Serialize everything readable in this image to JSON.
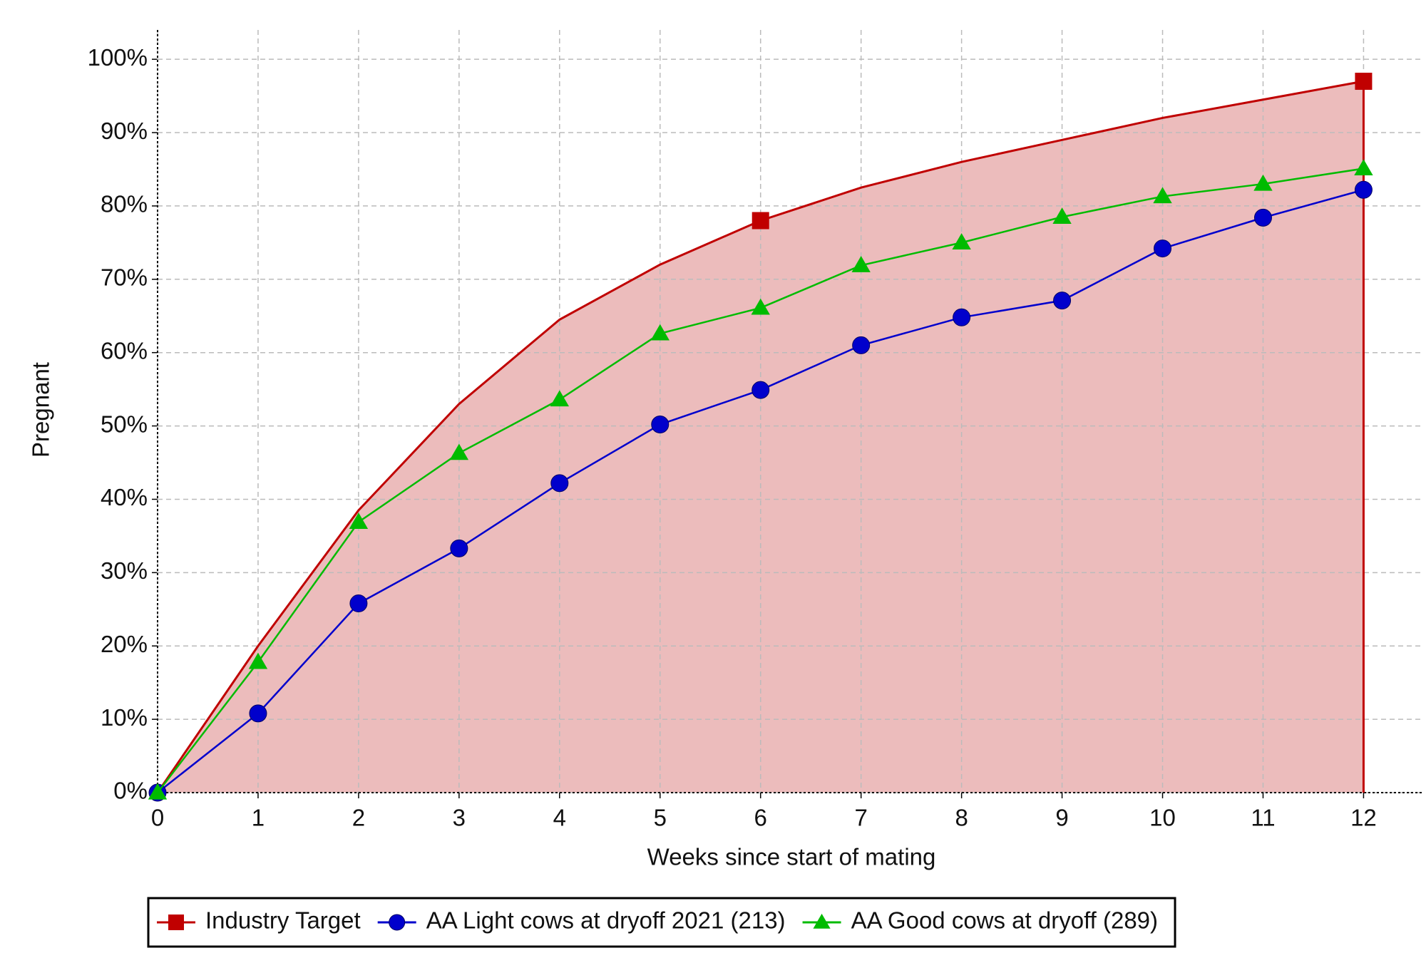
{
  "chart_data": {
    "type": "line",
    "x_label": "Weeks since start of mating",
    "y_label": "Pregnant",
    "x": [
      0,
      1,
      2,
      3,
      4,
      5,
      6,
      7,
      8,
      9,
      10,
      11,
      12
    ],
    "xlim": [
      0,
      12.6
    ],
    "xticks": [
      0,
      1,
      2,
      3,
      4,
      5,
      6,
      7,
      8,
      9,
      10,
      11,
      12
    ],
    "ylim": [
      0,
      104
    ],
    "yticks": [
      {
        "value": 0,
        "label": "0%"
      },
      {
        "value": 10,
        "label": "10%"
      },
      {
        "value": 20,
        "label": "20%"
      },
      {
        "value": 30,
        "label": "30%"
      },
      {
        "value": 40,
        "label": "40%"
      },
      {
        "value": 50,
        "label": "50%"
      },
      {
        "value": 60,
        "label": "60%"
      },
      {
        "value": 70,
        "label": "70%"
      },
      {
        "value": 80,
        "label": "80%"
      },
      {
        "value": 90,
        "label": "90%"
      },
      {
        "value": 100,
        "label": "100%"
      }
    ],
    "grid": true,
    "legend": "bottom",
    "series": [
      {
        "name": "Industry Target",
        "color": "#c00000",
        "fill": "#ecbcbc",
        "marker": "square",
        "markers_at": [
          6,
          12
        ],
        "values": [
          0,
          20,
          38.5,
          53,
          64.5,
          72,
          78,
          82.5,
          86,
          89,
          92,
          94.5,
          97
        ]
      },
      {
        "name": "AA Light cows at dryoff 2021 (213)",
        "color": "#0000cc",
        "marker": "circle",
        "values": [
          0,
          10.8,
          25.8,
          33.3,
          42.2,
          50.2,
          54.9,
          61,
          64.8,
          67.1,
          74.2,
          78.4,
          82.2
        ]
      },
      {
        "name": "AA Good cows at dryoff (289)",
        "color": "#00bb00",
        "marker": "triangle",
        "values": [
          0,
          17.8,
          36.9,
          46.3,
          53.6,
          62.6,
          66.1,
          71.9,
          75,
          78.5,
          81.3,
          83,
          85.1
        ]
      }
    ]
  }
}
